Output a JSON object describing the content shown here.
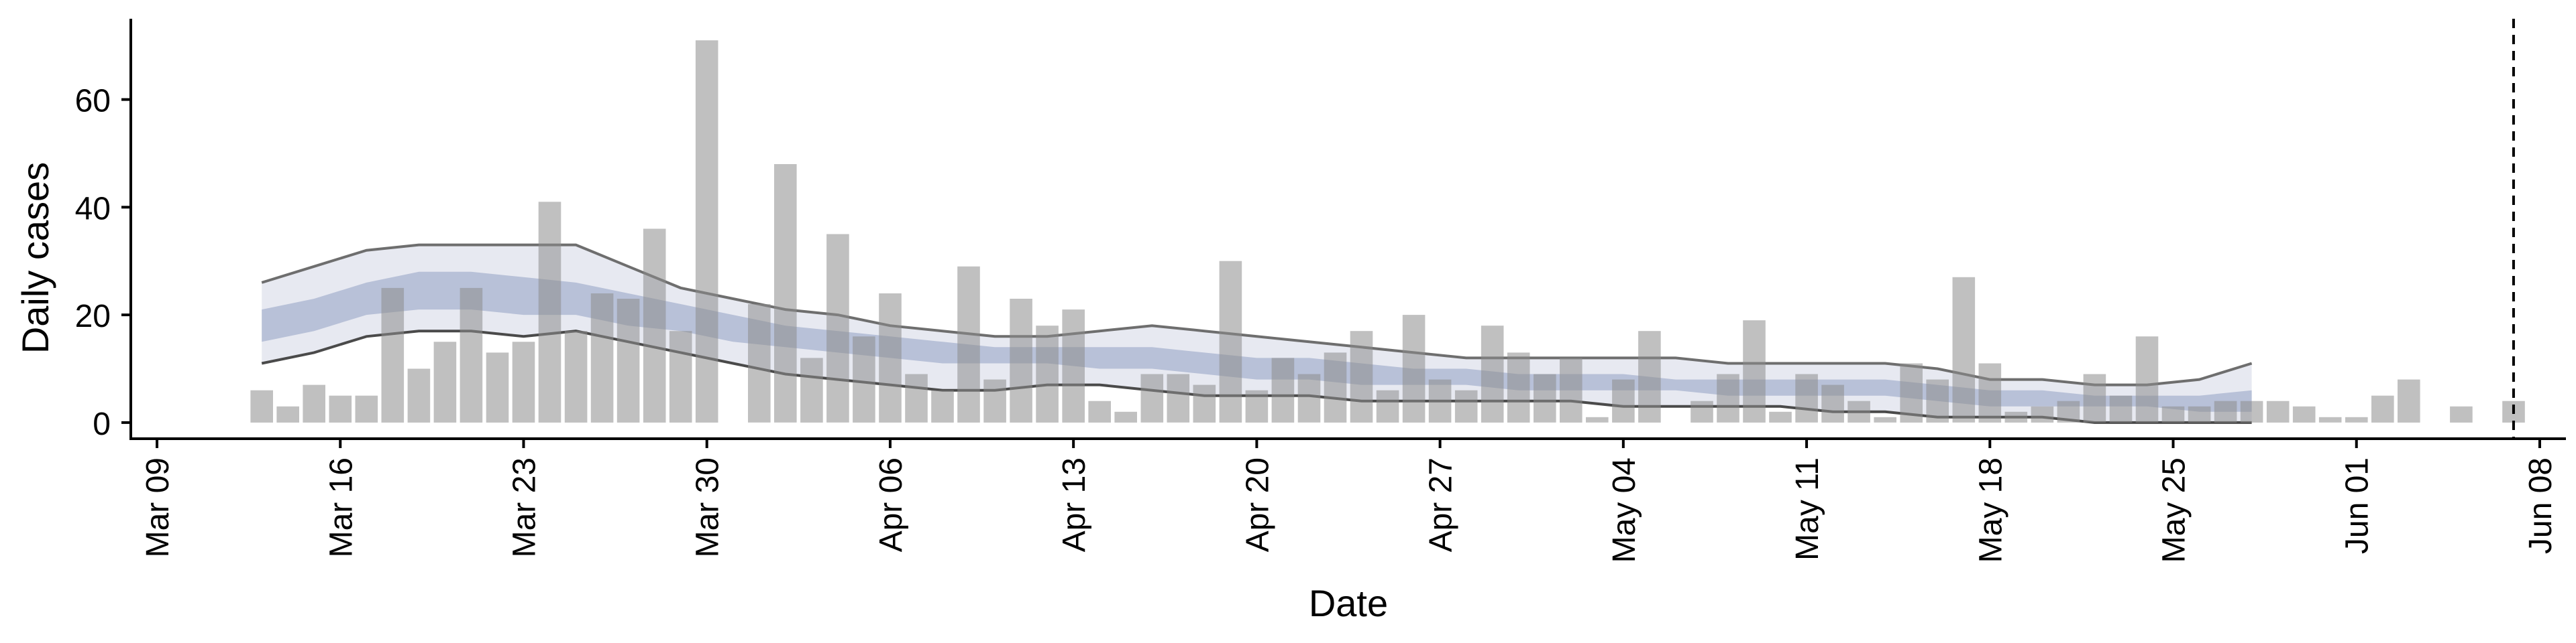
{
  "chart_data": {
    "type": "bar",
    "xlabel": "Date",
    "ylabel": "Daily cases",
    "xlim": [
      "2020-03-08",
      "2020-06-09"
    ],
    "ylim": [
      -3,
      75
    ],
    "grid": false,
    "x_ticks": [
      "Mar 09",
      "Mar 16",
      "Mar 23",
      "Mar 30",
      "Apr 06",
      "Apr 13",
      "Apr 20",
      "Apr 27",
      "May 04",
      "May 11",
      "May 18",
      "May 25",
      "Jun 01",
      "Jun 08"
    ],
    "x_tick_dates": [
      "2020-03-09",
      "2020-03-16",
      "2020-03-23",
      "2020-03-30",
      "2020-04-06",
      "2020-04-13",
      "2020-04-20",
      "2020-04-27",
      "2020-05-04",
      "2020-05-11",
      "2020-05-18",
      "2020-05-25",
      "2020-06-01",
      "2020-06-08"
    ],
    "y_ticks": [
      0,
      20,
      40,
      60
    ],
    "bars": {
      "color": "#bebebe",
      "dates": [
        "2020-03-13",
        "2020-03-14",
        "2020-03-15",
        "2020-03-16",
        "2020-03-17",
        "2020-03-18",
        "2020-03-19",
        "2020-03-20",
        "2020-03-21",
        "2020-03-22",
        "2020-03-23",
        "2020-03-24",
        "2020-03-25",
        "2020-03-26",
        "2020-03-27",
        "2020-03-28",
        "2020-03-29",
        "2020-03-30",
        "2020-03-31",
        "2020-04-01",
        "2020-04-02",
        "2020-04-03",
        "2020-04-04",
        "2020-04-05",
        "2020-04-06",
        "2020-04-07",
        "2020-04-08",
        "2020-04-09",
        "2020-04-10",
        "2020-04-11",
        "2020-04-12",
        "2020-04-13",
        "2020-04-14",
        "2020-04-15",
        "2020-04-16",
        "2020-04-17",
        "2020-04-18",
        "2020-04-19",
        "2020-04-20",
        "2020-04-21",
        "2020-04-22",
        "2020-04-23",
        "2020-04-24",
        "2020-04-25",
        "2020-04-26",
        "2020-04-27",
        "2020-04-28",
        "2020-04-29",
        "2020-04-30",
        "2020-05-01",
        "2020-05-02",
        "2020-05-03",
        "2020-05-04",
        "2020-05-05",
        "2020-05-06",
        "2020-05-07",
        "2020-05-08",
        "2020-05-09",
        "2020-05-10",
        "2020-05-11",
        "2020-05-12",
        "2020-05-13",
        "2020-05-14",
        "2020-05-15",
        "2020-05-16",
        "2020-05-17",
        "2020-05-18",
        "2020-05-19",
        "2020-05-20",
        "2020-05-21",
        "2020-05-22",
        "2020-05-23",
        "2020-05-24",
        "2020-05-25",
        "2020-05-26",
        "2020-05-27",
        "2020-05-28",
        "2020-05-29",
        "2020-05-30",
        "2020-05-31",
        "2020-06-01",
        "2020-06-02",
        "2020-06-03",
        "2020-06-04",
        "2020-06-05",
        "2020-06-06",
        "2020-06-07"
      ],
      "values": [
        6,
        3,
        7,
        5,
        5,
        25,
        10,
        15,
        25,
        13,
        15,
        41,
        17,
        24,
        23,
        36,
        17,
        71,
        0,
        22,
        48,
        12,
        35,
        16,
        24,
        9,
        6,
        29,
        8,
        23,
        18,
        21,
        4,
        2,
        9,
        9,
        7,
        30,
        6,
        12,
        9,
        13,
        17,
        6,
        20,
        8,
        6,
        18,
        13,
        9,
        12,
        1,
        8,
        17,
        0,
        4,
        9,
        19,
        2,
        9,
        7,
        4,
        1,
        11,
        8,
        27,
        11,
        2,
        3,
        4,
        9,
        5,
        16,
        3,
        3,
        4,
        4,
        4,
        3,
        1,
        1,
        5,
        8,
        0,
        3,
        0,
        4
      ]
    },
    "band_outer": {
      "color": "#e7e9f1",
      "dates": [
        "2020-03-13",
        "2020-03-15",
        "2020-03-17",
        "2020-03-19",
        "2020-03-21",
        "2020-03-23",
        "2020-03-25",
        "2020-03-27",
        "2020-03-29",
        "2020-03-31",
        "2020-04-02",
        "2020-04-04",
        "2020-04-06",
        "2020-04-08",
        "2020-04-10",
        "2020-04-12",
        "2020-04-14",
        "2020-04-16",
        "2020-04-18",
        "2020-04-20",
        "2020-04-22",
        "2020-04-24",
        "2020-04-26",
        "2020-04-28",
        "2020-04-30",
        "2020-05-02",
        "2020-05-04",
        "2020-05-06",
        "2020-05-08",
        "2020-05-10",
        "2020-05-12",
        "2020-05-14",
        "2020-05-16",
        "2020-05-18",
        "2020-05-20",
        "2020-05-22",
        "2020-05-24",
        "2020-05-26",
        "2020-05-28"
      ],
      "upper": [
        26,
        29,
        32,
        33,
        33,
        33,
        33,
        29,
        25,
        23,
        21,
        20,
        18,
        17,
        16,
        16,
        17,
        18,
        17,
        16,
        15,
        14,
        13,
        12,
        12,
        12,
        12,
        12,
        11,
        11,
        11,
        11,
        10,
        8,
        8,
        7,
        7,
        8,
        11
      ],
      "lower": [
        11,
        13,
        16,
        17,
        17,
        16,
        17,
        15,
        13,
        11,
        9,
        8,
        7,
        6,
        6,
        7,
        7,
        6,
        5,
        5,
        5,
        4,
        4,
        4,
        4,
        4,
        3,
        3,
        3,
        3,
        2,
        2,
        1,
        1,
        1,
        0,
        0,
        0,
        0
      ]
    },
    "band_inner": {
      "color": "#a8b3cf",
      "dates": [
        "2020-03-13",
        "2020-03-15",
        "2020-03-17",
        "2020-03-19",
        "2020-03-21",
        "2020-03-23",
        "2020-03-25",
        "2020-03-27",
        "2020-03-29",
        "2020-03-31",
        "2020-04-02",
        "2020-04-04",
        "2020-04-06",
        "2020-04-08",
        "2020-04-10",
        "2020-04-12",
        "2020-04-14",
        "2020-04-16",
        "2020-04-18",
        "2020-04-20",
        "2020-04-22",
        "2020-04-24",
        "2020-04-26",
        "2020-04-28",
        "2020-04-30",
        "2020-05-02",
        "2020-05-04",
        "2020-05-06",
        "2020-05-08",
        "2020-05-10",
        "2020-05-12",
        "2020-05-14",
        "2020-05-16",
        "2020-05-18",
        "2020-05-20",
        "2020-05-22",
        "2020-05-24",
        "2020-05-26",
        "2020-05-28"
      ],
      "upper": [
        21,
        23,
        26,
        28,
        28,
        27,
        26,
        24,
        22,
        20,
        18,
        17,
        16,
        15,
        14,
        14,
        14,
        14,
        13,
        12,
        12,
        11,
        10,
        10,
        9,
        9,
        9,
        8,
        8,
        8,
        8,
        8,
        7,
        6,
        6,
        5,
        5,
        5,
        6
      ],
      "lower": [
        15,
        17,
        20,
        21,
        21,
        20,
        20,
        18,
        17,
        15,
        14,
        13,
        12,
        11,
        11,
        11,
        10,
        10,
        9,
        8,
        8,
        7,
        7,
        7,
        6,
        6,
        6,
        6,
        5,
        5,
        5,
        5,
        4,
        3,
        3,
        3,
        3,
        2,
        2
      ]
    },
    "annotation": {
      "vertical_dashed_line_date": "2020-06-07"
    }
  }
}
